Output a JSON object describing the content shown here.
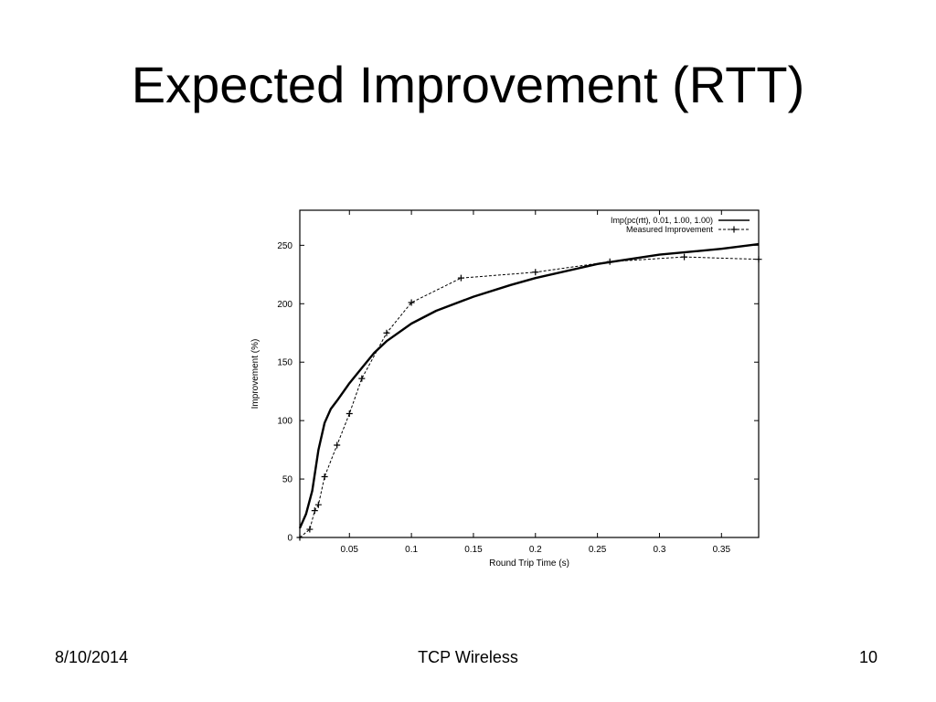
{
  "slide": {
    "title": "Expected Improvement (RTT)",
    "footer_date": "8/10/2014",
    "footer_center": "TCP Wireless",
    "page_number": "10"
  },
  "chart_data": {
    "type": "line",
    "xlabel": "Round Trip Time (s)",
    "ylabel": "Improvement (%)",
    "xlim": [
      0.01,
      0.38
    ],
    "ylim": [
      0,
      280
    ],
    "x_ticks": [
      0.05,
      0.1,
      0.15,
      0.2,
      0.25,
      0.3,
      0.35
    ],
    "x_tick_labels": [
      "0.05",
      "0.1",
      "0.15",
      "0.2",
      "0.25",
      "0.3",
      "0.35"
    ],
    "y_ticks": [
      0,
      50,
      100,
      150,
      200,
      250
    ],
    "y_tick_labels": [
      "0",
      "50",
      "100",
      "150",
      "200",
      "250"
    ],
    "grid": false,
    "legend_position": "top-right",
    "series": [
      {
        "name": "Imp(pc(rtt), 0.01, 1.00, 1.00)",
        "style": "solid",
        "color": "#000000",
        "x": [
          0.01,
          0.015,
          0.02,
          0.025,
          0.03,
          0.035,
          0.04,
          0.05,
          0.06,
          0.07,
          0.08,
          0.1,
          0.12,
          0.15,
          0.18,
          0.2,
          0.25,
          0.3,
          0.35,
          0.38
        ],
        "y": [
          8,
          20,
          40,
          75,
          98,
          110,
          117,
          132,
          145,
          158,
          168,
          183,
          194,
          206,
          216,
          222,
          234,
          242,
          247,
          251
        ]
      },
      {
        "name": "Measured Improvement",
        "style": "dashed",
        "marker": "+",
        "color": "#000000",
        "x": [
          0.01,
          0.018,
          0.022,
          0.025,
          0.03,
          0.04,
          0.05,
          0.06,
          0.08,
          0.1,
          0.14,
          0.2,
          0.26,
          0.32,
          0.38
        ],
        "y": [
          0,
          7,
          23,
          28,
          52,
          79,
          106,
          136,
          175,
          201,
          222,
          227,
          236,
          240,
          238
        ]
      }
    ]
  }
}
